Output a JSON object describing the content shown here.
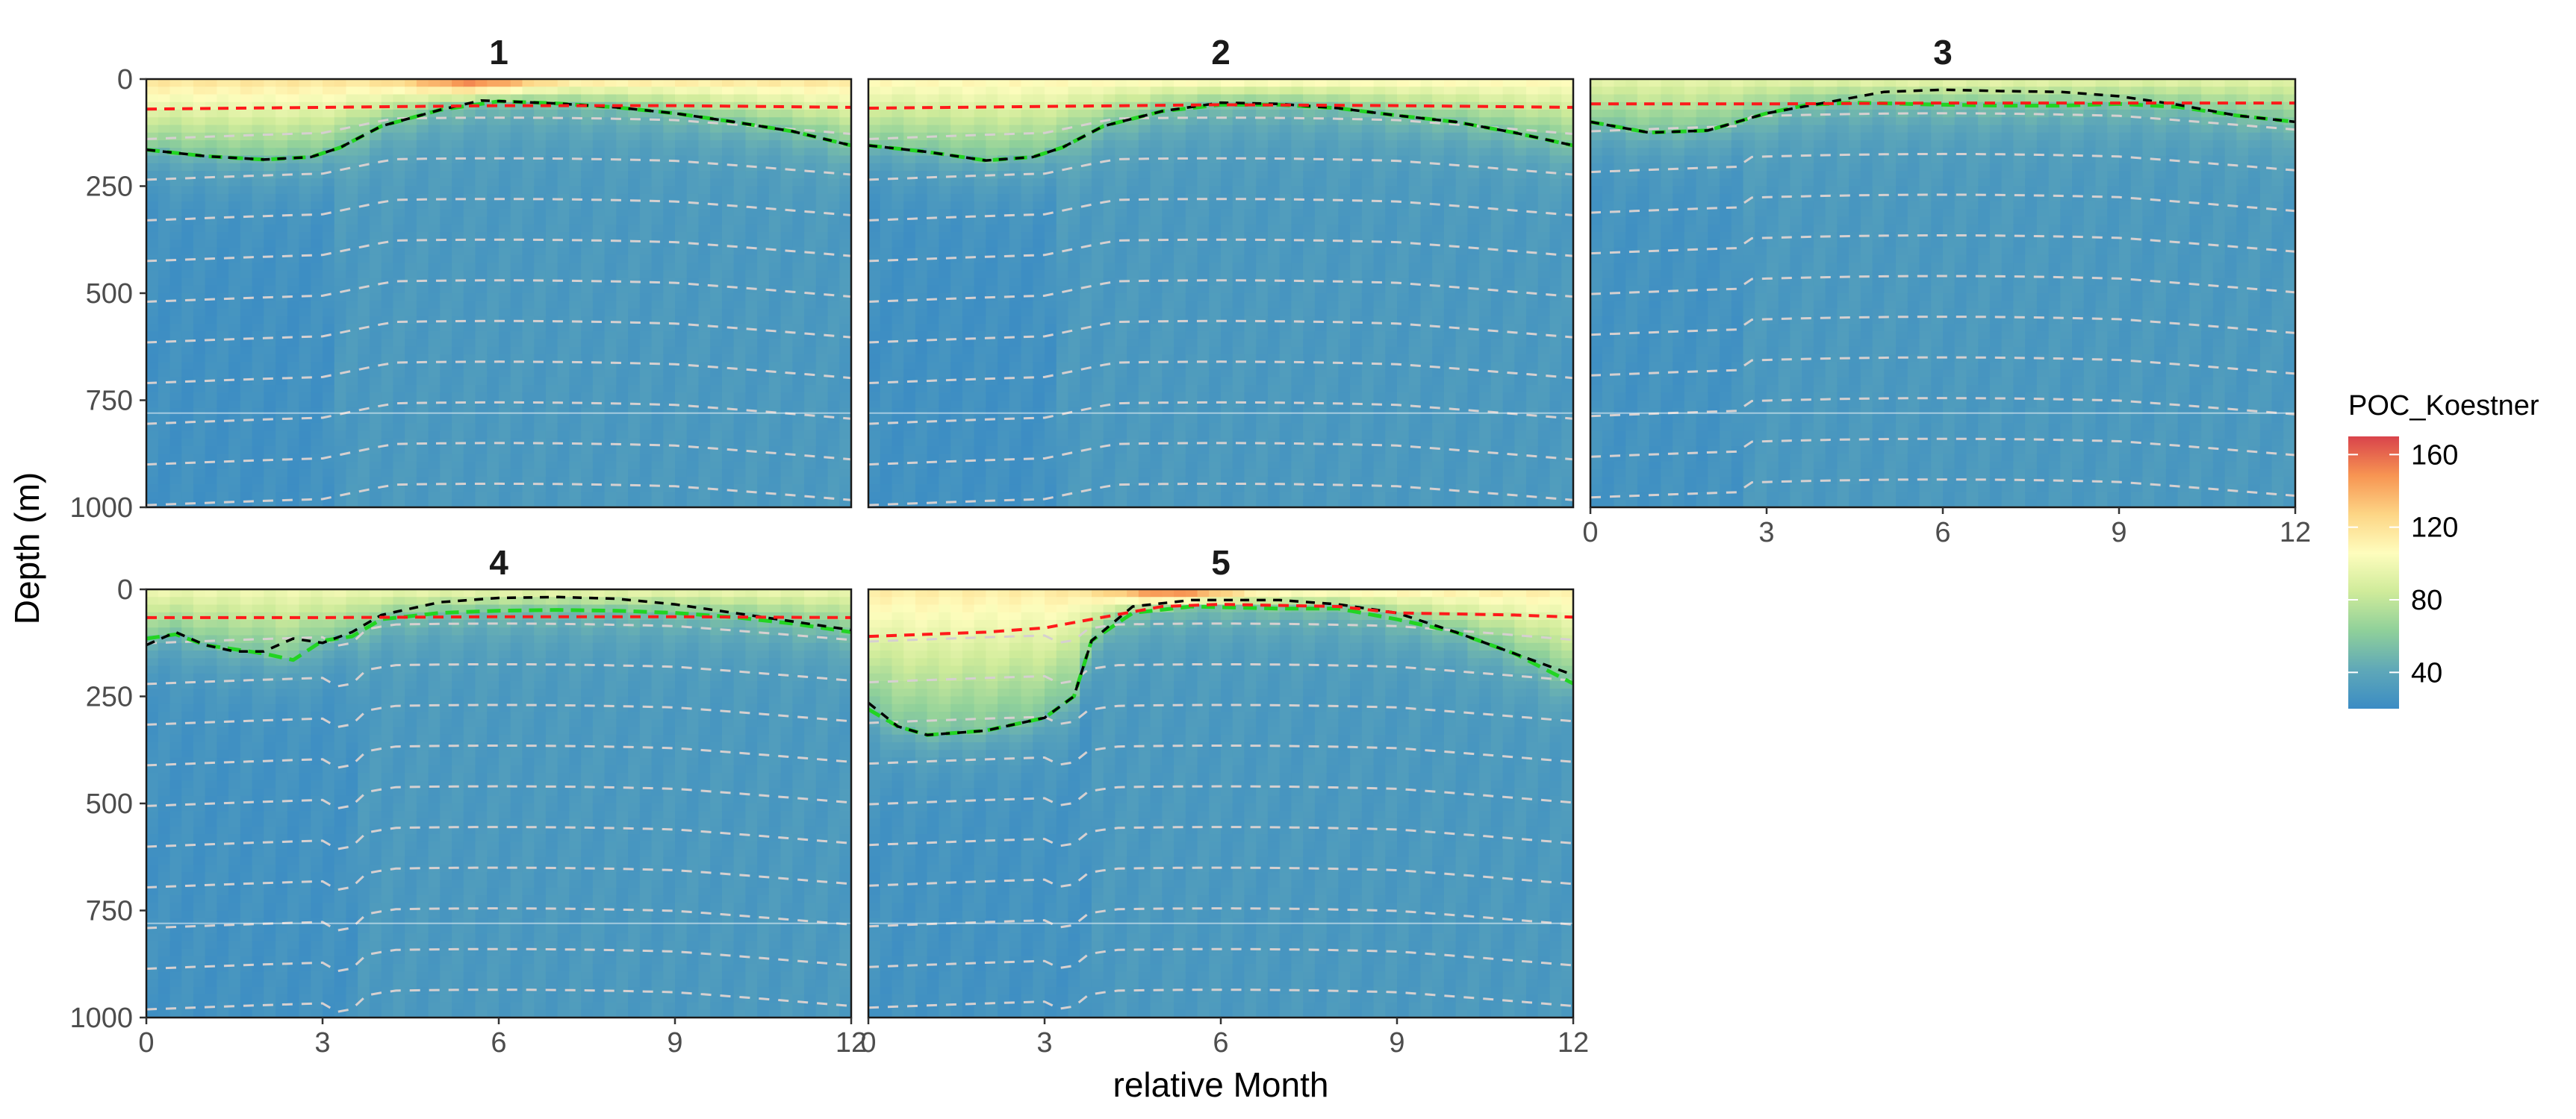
{
  "chart_data": {
    "type": "heatmap",
    "fill_variable": "POC_Koestner",
    "xlabel": "relative Month",
    "ylabel": "Depth (m)",
    "xlim": [
      0,
      12
    ],
    "ylim": [
      0,
      1000
    ],
    "y_reversed": true,
    "x_ticks": [
      "0",
      "3",
      "6",
      "9",
      "12"
    ],
    "y_ticks": [
      "0",
      "250",
      "500",
      "750",
      "1000"
    ],
    "x_tick_values": [
      0,
      3,
      6,
      9,
      12
    ],
    "y_tick_values": [
      0,
      250,
      500,
      750,
      1000
    ],
    "grid": false,
    "legend": {
      "title": "POC_Koestner",
      "placement": "right",
      "range": [
        20,
        170
      ],
      "breaks": [
        160,
        120,
        80,
        40
      ],
      "labels": [
        "160",
        "120",
        "80",
        "40"
      ]
    },
    "colorscale": [
      "#3B8CC4",
      "#5FA8B8",
      "#8FD09A",
      "#CFEB9A",
      "#FEFDBD",
      "#FDD585",
      "#F79452",
      "#D9434B"
    ],
    "line_series": [
      {
        "key": "red",
        "style": "red dashed",
        "color": "#ff1a1a"
      },
      {
        "key": "green",
        "style": "green dashed",
        "color": "#22d422"
      },
      {
        "key": "black",
        "style": "black dashed",
        "color": "#000000"
      },
      {
        "key": "isopycnals",
        "style": "grey dashed",
        "color": "#cccccc"
      }
    ],
    "panels": [
      {
        "title": "1",
        "surface_max": 120,
        "hotspot": {
          "x": 5.6,
          "peak": 165,
          "width": 1.1
        },
        "deep_dip": {
          "start": 0,
          "end": 3.2,
          "depth": 30
        },
        "iso_base_offset": 10,
        "red": [
          [
            0,
            70
          ],
          [
            3,
            66
          ],
          [
            6,
            62
          ],
          [
            9,
            62
          ],
          [
            12,
            66
          ]
        ],
        "green": [
          [
            0,
            165
          ],
          [
            1,
            180
          ],
          [
            2,
            188
          ],
          [
            2.8,
            182
          ],
          [
            3.3,
            160
          ],
          [
            4,
            110
          ],
          [
            5,
            72
          ],
          [
            6,
            52
          ],
          [
            7,
            57
          ],
          [
            8,
            66
          ],
          [
            9,
            80
          ],
          [
            10,
            100
          ],
          [
            11,
            122
          ],
          [
            12,
            155
          ]
        ],
        "black": [
          [
            0,
            165
          ],
          [
            1,
            180
          ],
          [
            2,
            188
          ],
          [
            2.8,
            182
          ],
          [
            3.3,
            160
          ],
          [
            4,
            110
          ],
          [
            5,
            72
          ],
          [
            5.7,
            50
          ],
          [
            7,
            57
          ],
          [
            8,
            66
          ],
          [
            9,
            80
          ],
          [
            10,
            100
          ],
          [
            11,
            122
          ],
          [
            12,
            155
          ]
        ]
      },
      {
        "title": "2",
        "surface_max": 110,
        "hotspot": {
          "x": 6.3,
          "peak": 112,
          "width": 1.3
        },
        "deep_dip": {
          "start": 0,
          "end": 3.2,
          "depth": 30
        },
        "iso_base_offset": 10,
        "red": [
          [
            0,
            68
          ],
          [
            3,
            64
          ],
          [
            6,
            60
          ],
          [
            9,
            62
          ],
          [
            12,
            66
          ]
        ],
        "green": [
          [
            0,
            155
          ],
          [
            1,
            170
          ],
          [
            2,
            190
          ],
          [
            2.8,
            182
          ],
          [
            3.3,
            160
          ],
          [
            4,
            110
          ],
          [
            5,
            75
          ],
          [
            6,
            60
          ],
          [
            7,
            60
          ],
          [
            8,
            68
          ],
          [
            9,
            85
          ],
          [
            10,
            100
          ],
          [
            11,
            125
          ],
          [
            12,
            155
          ]
        ],
        "black": [
          [
            0,
            155
          ],
          [
            1,
            170
          ],
          [
            2,
            190
          ],
          [
            2.8,
            182
          ],
          [
            3.3,
            160
          ],
          [
            4,
            110
          ],
          [
            5,
            75
          ],
          [
            6,
            55
          ],
          [
            7,
            58
          ],
          [
            8,
            68
          ],
          [
            9,
            85
          ],
          [
            10,
            100
          ],
          [
            11,
            125
          ],
          [
            12,
            155
          ]
        ]
      },
      {
        "title": "3",
        "surface_max": 95,
        "hotspot": {
          "x": 6.0,
          "peak": 98,
          "width": 2.0
        },
        "deep_dip": {
          "start": 0,
          "end": 2.5,
          "depth": 22
        },
        "iso_base_offset": 0,
        "red": [
          [
            0,
            58
          ],
          [
            3,
            58
          ],
          [
            6,
            56
          ],
          [
            9,
            56
          ],
          [
            12,
            56
          ]
        ],
        "green": [
          [
            0,
            100
          ],
          [
            1,
            125
          ],
          [
            2,
            120
          ],
          [
            3,
            80
          ],
          [
            3.7,
            60
          ],
          [
            4.5,
            55
          ],
          [
            6,
            60
          ],
          [
            7,
            62
          ],
          [
            8,
            62
          ],
          [
            9,
            58
          ],
          [
            10,
            65
          ],
          [
            11,
            85
          ],
          [
            12,
            100
          ]
        ],
        "black": [
          [
            0,
            100
          ],
          [
            1,
            125
          ],
          [
            2,
            120
          ],
          [
            3,
            80
          ],
          [
            4,
            55
          ],
          [
            5,
            30
          ],
          [
            6,
            25
          ],
          [
            7,
            28
          ],
          [
            8,
            30
          ],
          [
            9,
            40
          ],
          [
            10,
            60
          ],
          [
            11,
            85
          ],
          [
            12,
            100
          ]
        ]
      },
      {
        "title": "4",
        "surface_max": 100,
        "hotspot": {
          "x": 7.5,
          "peak": 100,
          "width": 1.6
        },
        "deep_dip": {
          "start": 0,
          "end": 3.6,
          "depth": 26
        },
        "iso_base_offset": 0,
        "red": [
          [
            0,
            66
          ],
          [
            3,
            66
          ],
          [
            6,
            64
          ],
          [
            9,
            64
          ],
          [
            12,
            66
          ]
        ],
        "green": [
          [
            0,
            115
          ],
          [
            0.5,
            105
          ],
          [
            1,
            130
          ],
          [
            1.5,
            140
          ],
          [
            2,
            150
          ],
          [
            2.5,
            165
          ],
          [
            3,
            120
          ],
          [
            3.5,
            110
          ],
          [
            4,
            70
          ],
          [
            5,
            55
          ],
          [
            6,
            50
          ],
          [
            7,
            48
          ],
          [
            8,
            50
          ],
          [
            9,
            55
          ],
          [
            10,
            65
          ],
          [
            11,
            80
          ],
          [
            12,
            100
          ]
        ],
        "black": [
          [
            0,
            130
          ],
          [
            0.5,
            100
          ],
          [
            1,
            130
          ],
          [
            1.5,
            145
          ],
          [
            2,
            145
          ],
          [
            2.5,
            115
          ],
          [
            3,
            125
          ],
          [
            3.5,
            100
          ],
          [
            4,
            60
          ],
          [
            5,
            30
          ],
          [
            6,
            20
          ],
          [
            7,
            18
          ],
          [
            8,
            22
          ],
          [
            9,
            35
          ],
          [
            10,
            55
          ],
          [
            11,
            75
          ],
          [
            12,
            95
          ]
        ]
      },
      {
        "title": "5",
        "surface_max": 115,
        "hotspot": {
          "x": 5.2,
          "peak": 168,
          "width": 1.1
        },
        "deep_dip": {
          "start": 0,
          "end": 3.7,
          "depth": 22
        },
        "iso_base_offset": 0,
        "red": [
          [
            0,
            110
          ],
          [
            2,
            100
          ],
          [
            3,
            90
          ],
          [
            4,
            65
          ],
          [
            5,
            40
          ],
          [
            6,
            35
          ],
          [
            8,
            40
          ],
          [
            9,
            55
          ],
          [
            11,
            60
          ],
          [
            12,
            65
          ]
        ],
        "green": [
          [
            0,
            280
          ],
          [
            0.5,
            320
          ],
          [
            1,
            340
          ],
          [
            2,
            330
          ],
          [
            3,
            300
          ],
          [
            3.5,
            250
          ],
          [
            3.8,
            120
          ],
          [
            4.5,
            55
          ],
          [
            5.5,
            40
          ],
          [
            7,
            45
          ],
          [
            8,
            45
          ],
          [
            9,
            70
          ],
          [
            10,
            100
          ],
          [
            11,
            150
          ],
          [
            12,
            220
          ]
        ],
        "black": [
          [
            0,
            265
          ],
          [
            0.5,
            320
          ],
          [
            1,
            340
          ],
          [
            2,
            330
          ],
          [
            3,
            300
          ],
          [
            3.5,
            250
          ],
          [
            3.8,
            120
          ],
          [
            4.5,
            40
          ],
          [
            5.5,
            25
          ],
          [
            7,
            25
          ],
          [
            8,
            35
          ],
          [
            9,
            55
          ],
          [
            10,
            100
          ],
          [
            11,
            150
          ],
          [
            12,
            200
          ]
        ]
      }
    ]
  }
}
